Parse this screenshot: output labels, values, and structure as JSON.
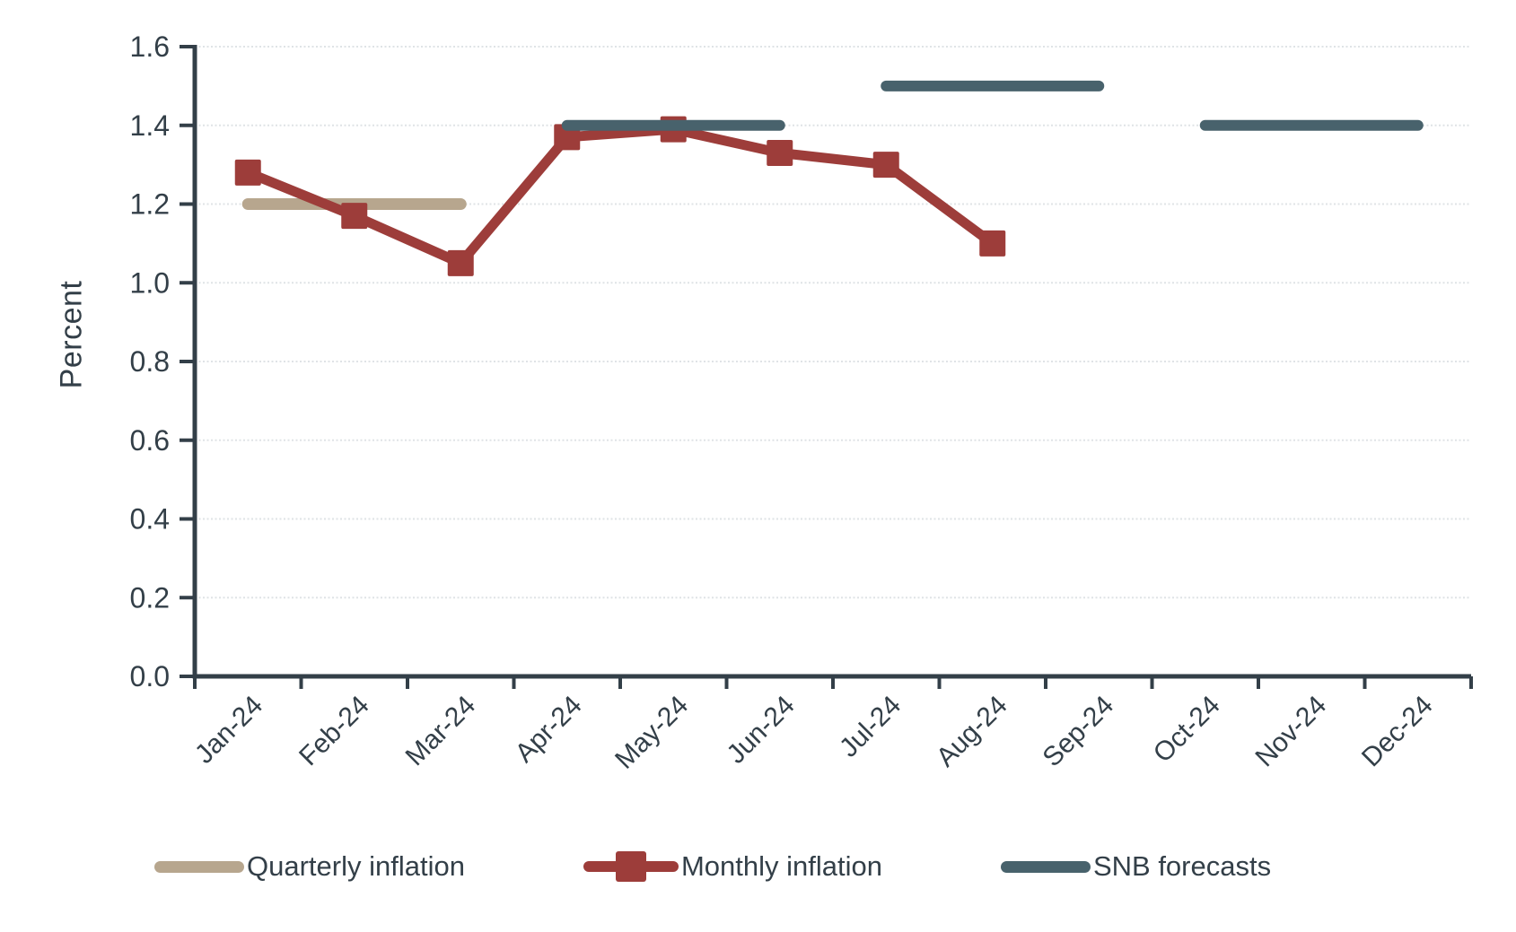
{
  "chart_data": {
    "type": "line",
    "title": "",
    "xlabel": "",
    "ylabel": "Percent",
    "ylim": [
      0.0,
      1.6
    ],
    "ytick_step": 0.2,
    "ytick_labels": [
      "0.0",
      "0.2",
      "0.4",
      "0.6",
      "0.8",
      "1.0",
      "1.2",
      "1.4",
      "1.6"
    ],
    "grid": "horizontal",
    "legend_position": "bottom",
    "background": "#ffffff",
    "axis_color": "#333f48",
    "grid_color": "#dfe3e6",
    "categories": [
      "Jan-24",
      "Feb-24",
      "Mar-24",
      "Apr-24",
      "May-24",
      "Jun-24",
      "Jul-24",
      "Aug-24",
      "Sep-24",
      "Oct-24",
      "Nov-24",
      "Dec-24"
    ],
    "series": [
      {
        "name": "Quarterly inflation",
        "render": "segments",
        "color": "#b7a68e",
        "line_width": 13,
        "segments": [
          {
            "from": "Jan-24",
            "to": "Mar-24",
            "value": 1.2
          }
        ]
      },
      {
        "name": "Monthly inflation",
        "render": "line-markers",
        "color": "#9d3d3a",
        "line_width": 11,
        "marker": "square",
        "marker_size": 29,
        "values": [
          1.28,
          1.17,
          1.05,
          1.37,
          1.39,
          1.33,
          1.3,
          1.1,
          null,
          null,
          null,
          null
        ]
      },
      {
        "name": "SNB forecasts",
        "render": "segments",
        "color": "#48626c",
        "line_width": 12,
        "segments": [
          {
            "from": "Apr-24",
            "to": "Jun-24",
            "value": 1.4
          },
          {
            "from": "Jul-24",
            "to": "Sep-24",
            "value": 1.5
          },
          {
            "from": "Oct-24",
            "to": "Dec-24",
            "value": 1.4
          }
        ]
      }
    ]
  }
}
